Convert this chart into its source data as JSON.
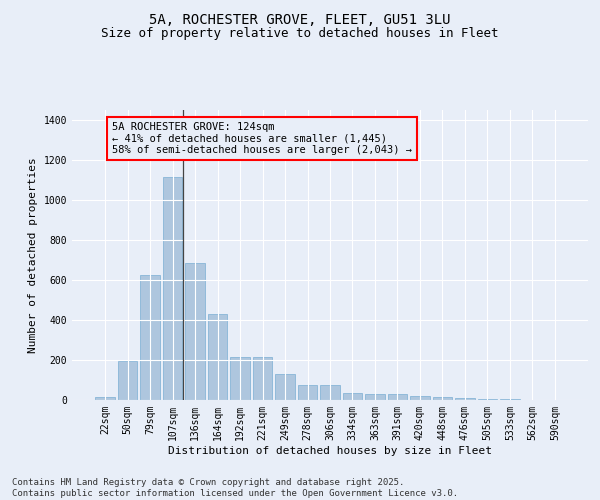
{
  "title_line1": "5A, ROCHESTER GROVE, FLEET, GU51 3LU",
  "title_line2": "Size of property relative to detached houses in Fleet",
  "categories": [
    "22sqm",
    "50sqm",
    "79sqm",
    "107sqm",
    "136sqm",
    "164sqm",
    "192sqm",
    "221sqm",
    "249sqm",
    "278sqm",
    "306sqm",
    "334sqm",
    "363sqm",
    "391sqm",
    "420sqm",
    "448sqm",
    "476sqm",
    "505sqm",
    "533sqm",
    "562sqm",
    "590sqm"
  ],
  "values": [
    15,
    195,
    625,
    1115,
    685,
    430,
    215,
    215,
    130,
    75,
    75,
    35,
    30,
    30,
    20,
    15,
    10,
    5,
    3,
    2,
    1
  ],
  "bar_color": "#aec6de",
  "bar_edge_color": "#7aafd4",
  "annotation_vline_x": 3.45,
  "annotation_text_line1": "5A ROCHESTER GROVE: 124sqm",
  "annotation_text_line2": "← 41% of detached houses are smaller (1,445)",
  "annotation_text_line3": "58% of semi-detached houses are larger (2,043) →",
  "ylabel": "Number of detached properties",
  "xlabel": "Distribution of detached houses by size in Fleet",
  "ylim": [
    0,
    1450
  ],
  "yticks": [
    0,
    200,
    400,
    600,
    800,
    1000,
    1200,
    1400
  ],
  "bg_color": "#e8eef8",
  "grid_color": "#ffffff",
  "footer_line1": "Contains HM Land Registry data © Crown copyright and database right 2025.",
  "footer_line2": "Contains public sector information licensed under the Open Government Licence v3.0.",
  "title_fontsize": 10,
  "subtitle_fontsize": 9,
  "axis_label_fontsize": 8,
  "tick_fontsize": 7,
  "annotation_fontsize": 7.5,
  "footer_fontsize": 6.5
}
